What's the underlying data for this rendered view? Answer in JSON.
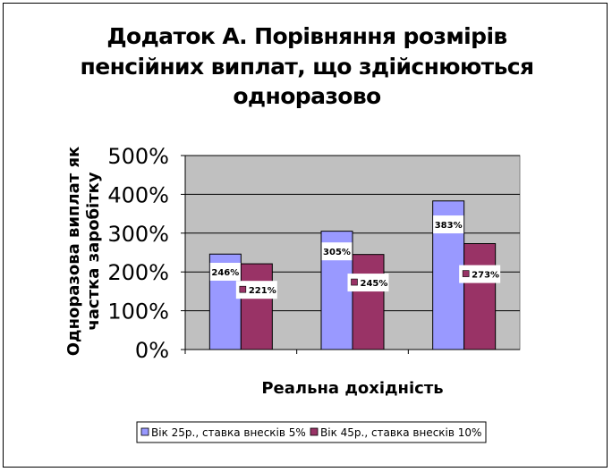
{
  "chart_data": {
    "type": "bar",
    "title_lines": [
      "Додаток А. Порівняння розмірів",
      "пенсійних виплат, що здійснюються",
      "одноразово"
    ],
    "xlabel": "Реальна дохідність",
    "ylabel_lines": [
      "Одноразова виплат як",
      "частка заробітку"
    ],
    "categories": [
      "",
      "",
      ""
    ],
    "ylim": [
      0,
      500
    ],
    "yticks": [
      0,
      100,
      200,
      300,
      400,
      500
    ],
    "ytick_labels": [
      "0%",
      "100%",
      "200%",
      "300%",
      "400%",
      "500%"
    ],
    "grid": true,
    "legend_position": "bottom",
    "series": [
      {
        "name": "Вік 25р., ставка внесків 5%",
        "values": [
          246,
          305,
          383
        ],
        "data_labels": [
          "246%",
          "305%",
          "383%"
        ],
        "color": "#9999ff"
      },
      {
        "name": "Вік 45р., ставка внесків 10%",
        "values": [
          221,
          245,
          273
        ],
        "data_labels": [
          "221%",
          "245%",
          "273%"
        ],
        "color": "#993366"
      }
    ],
    "plot_background": "#c0c0c0"
  }
}
